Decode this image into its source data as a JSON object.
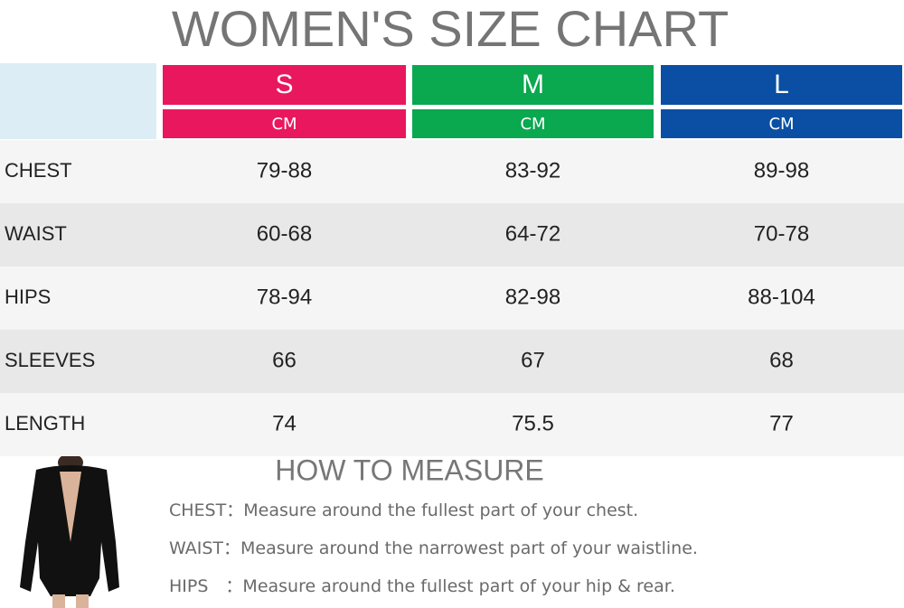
{
  "header": {
    "title": "WOMEN'S SIZE CHART"
  },
  "table": {
    "columns": [
      {
        "size": "S",
        "unit": "CM"
      },
      {
        "size": "M",
        "unit": "CM"
      },
      {
        "size": "L",
        "unit": "CM"
      }
    ],
    "rows": [
      [
        "CHEST",
        "79-88",
        "83-92",
        "89-98"
      ],
      [
        "WAIST",
        "60-68",
        "64-72",
        "70-78"
      ],
      [
        "HIPS",
        "78-94",
        "82-98",
        "88-104"
      ],
      [
        "SLEEVES",
        "66",
        "67",
        "68"
      ],
      [
        "LENGTH",
        "74",
        "75.5",
        "77"
      ]
    ]
  },
  "measure": {
    "title": "HOW TO MEASURE",
    "items": [
      {
        "label": "CHEST：",
        "text": "Measure around the fullest part of your chest."
      },
      {
        "label": "WAIST：",
        "text": "Measure around the narrowest part of your waistline."
      },
      {
        "label": "HIPS　：",
        "text": "Measure around the fullest part of your hip & rear."
      }
    ]
  }
}
